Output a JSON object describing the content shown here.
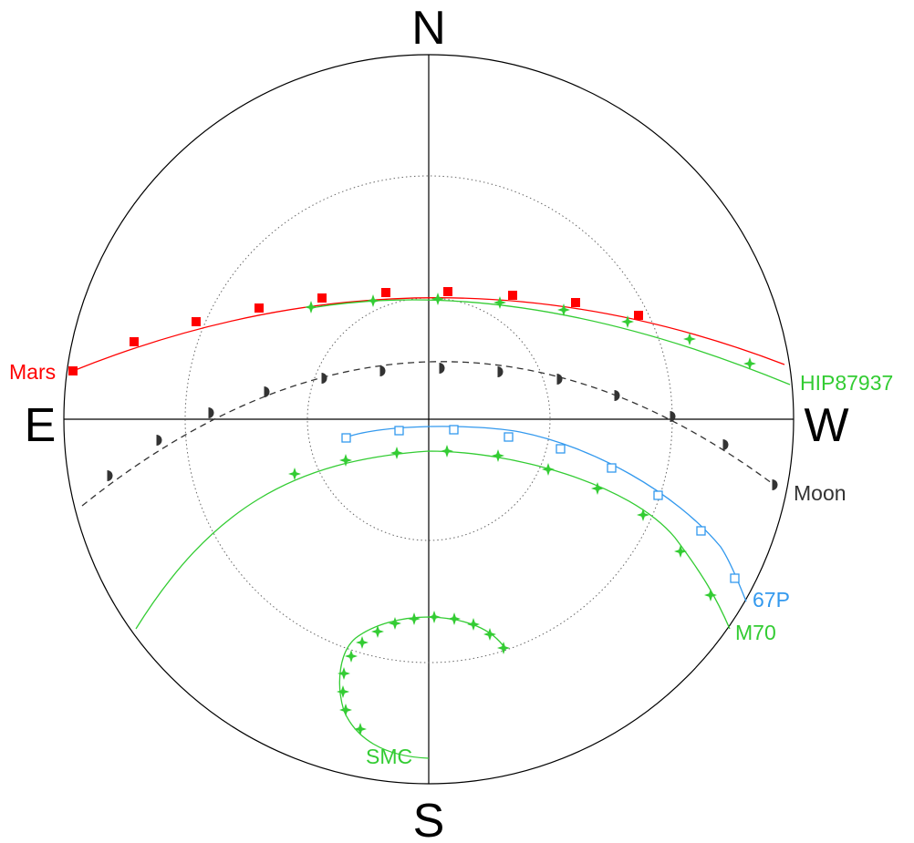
{
  "compass": {
    "north": "N",
    "south": "S",
    "east": "E",
    "west": "W"
  },
  "diagram": {
    "type": "polar-sky-chart",
    "altitude_circles_deg": [
      30,
      60
    ],
    "objects": [
      {
        "name": "Mars",
        "color": "#ff0000",
        "marker": "filled-square",
        "line": "solid"
      },
      {
        "name": "HIP87937",
        "color": "#33cc33",
        "marker": "four-point-star",
        "line": "solid"
      },
      {
        "name": "Moon",
        "color": "#333333",
        "marker": "moon-phase",
        "line": "dashed"
      },
      {
        "name": "67P",
        "color": "#3399ee",
        "marker": "open-square",
        "line": "solid"
      },
      {
        "name": "M70",
        "color": "#33cc33",
        "marker": "four-point-star",
        "line": "solid"
      },
      {
        "name": "SMC",
        "color": "#33cc33",
        "marker": "four-point-star",
        "line": "solid"
      }
    ]
  }
}
